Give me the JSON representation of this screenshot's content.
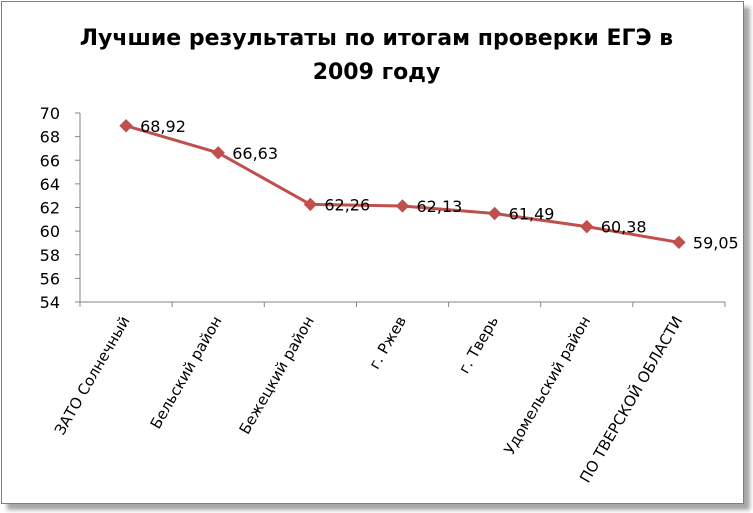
{
  "chart_data": {
    "type": "line",
    "title_lines": [
      "Лучшие результаты по итогам проверки ЕГЭ в",
      "2009 году"
    ],
    "categories": [
      "ЗАТО Солнечный",
      "Бельский район",
      "Бежецкий район",
      "г. Ржев",
      "г. Тверь",
      "Удомельский район",
      "ПО ТВЕРСКОЙ ОБЛАСТИ"
    ],
    "series": [
      {
        "values": [
          68.92,
          66.63,
          62.26,
          62.13,
          61.49,
          60.38,
          59.05
        ],
        "labels": [
          "68,92",
          "66,63",
          "62,26",
          "62,13",
          "61,49",
          "60,38",
          "59,05"
        ],
        "color": "#c0504d"
      }
    ],
    "ylim": [
      54,
      70
    ],
    "yticks": [
      "54",
      "56",
      "58",
      "60",
      "62",
      "64",
      "66",
      "68",
      "70"
    ],
    "grid": false,
    "legend": "none"
  }
}
